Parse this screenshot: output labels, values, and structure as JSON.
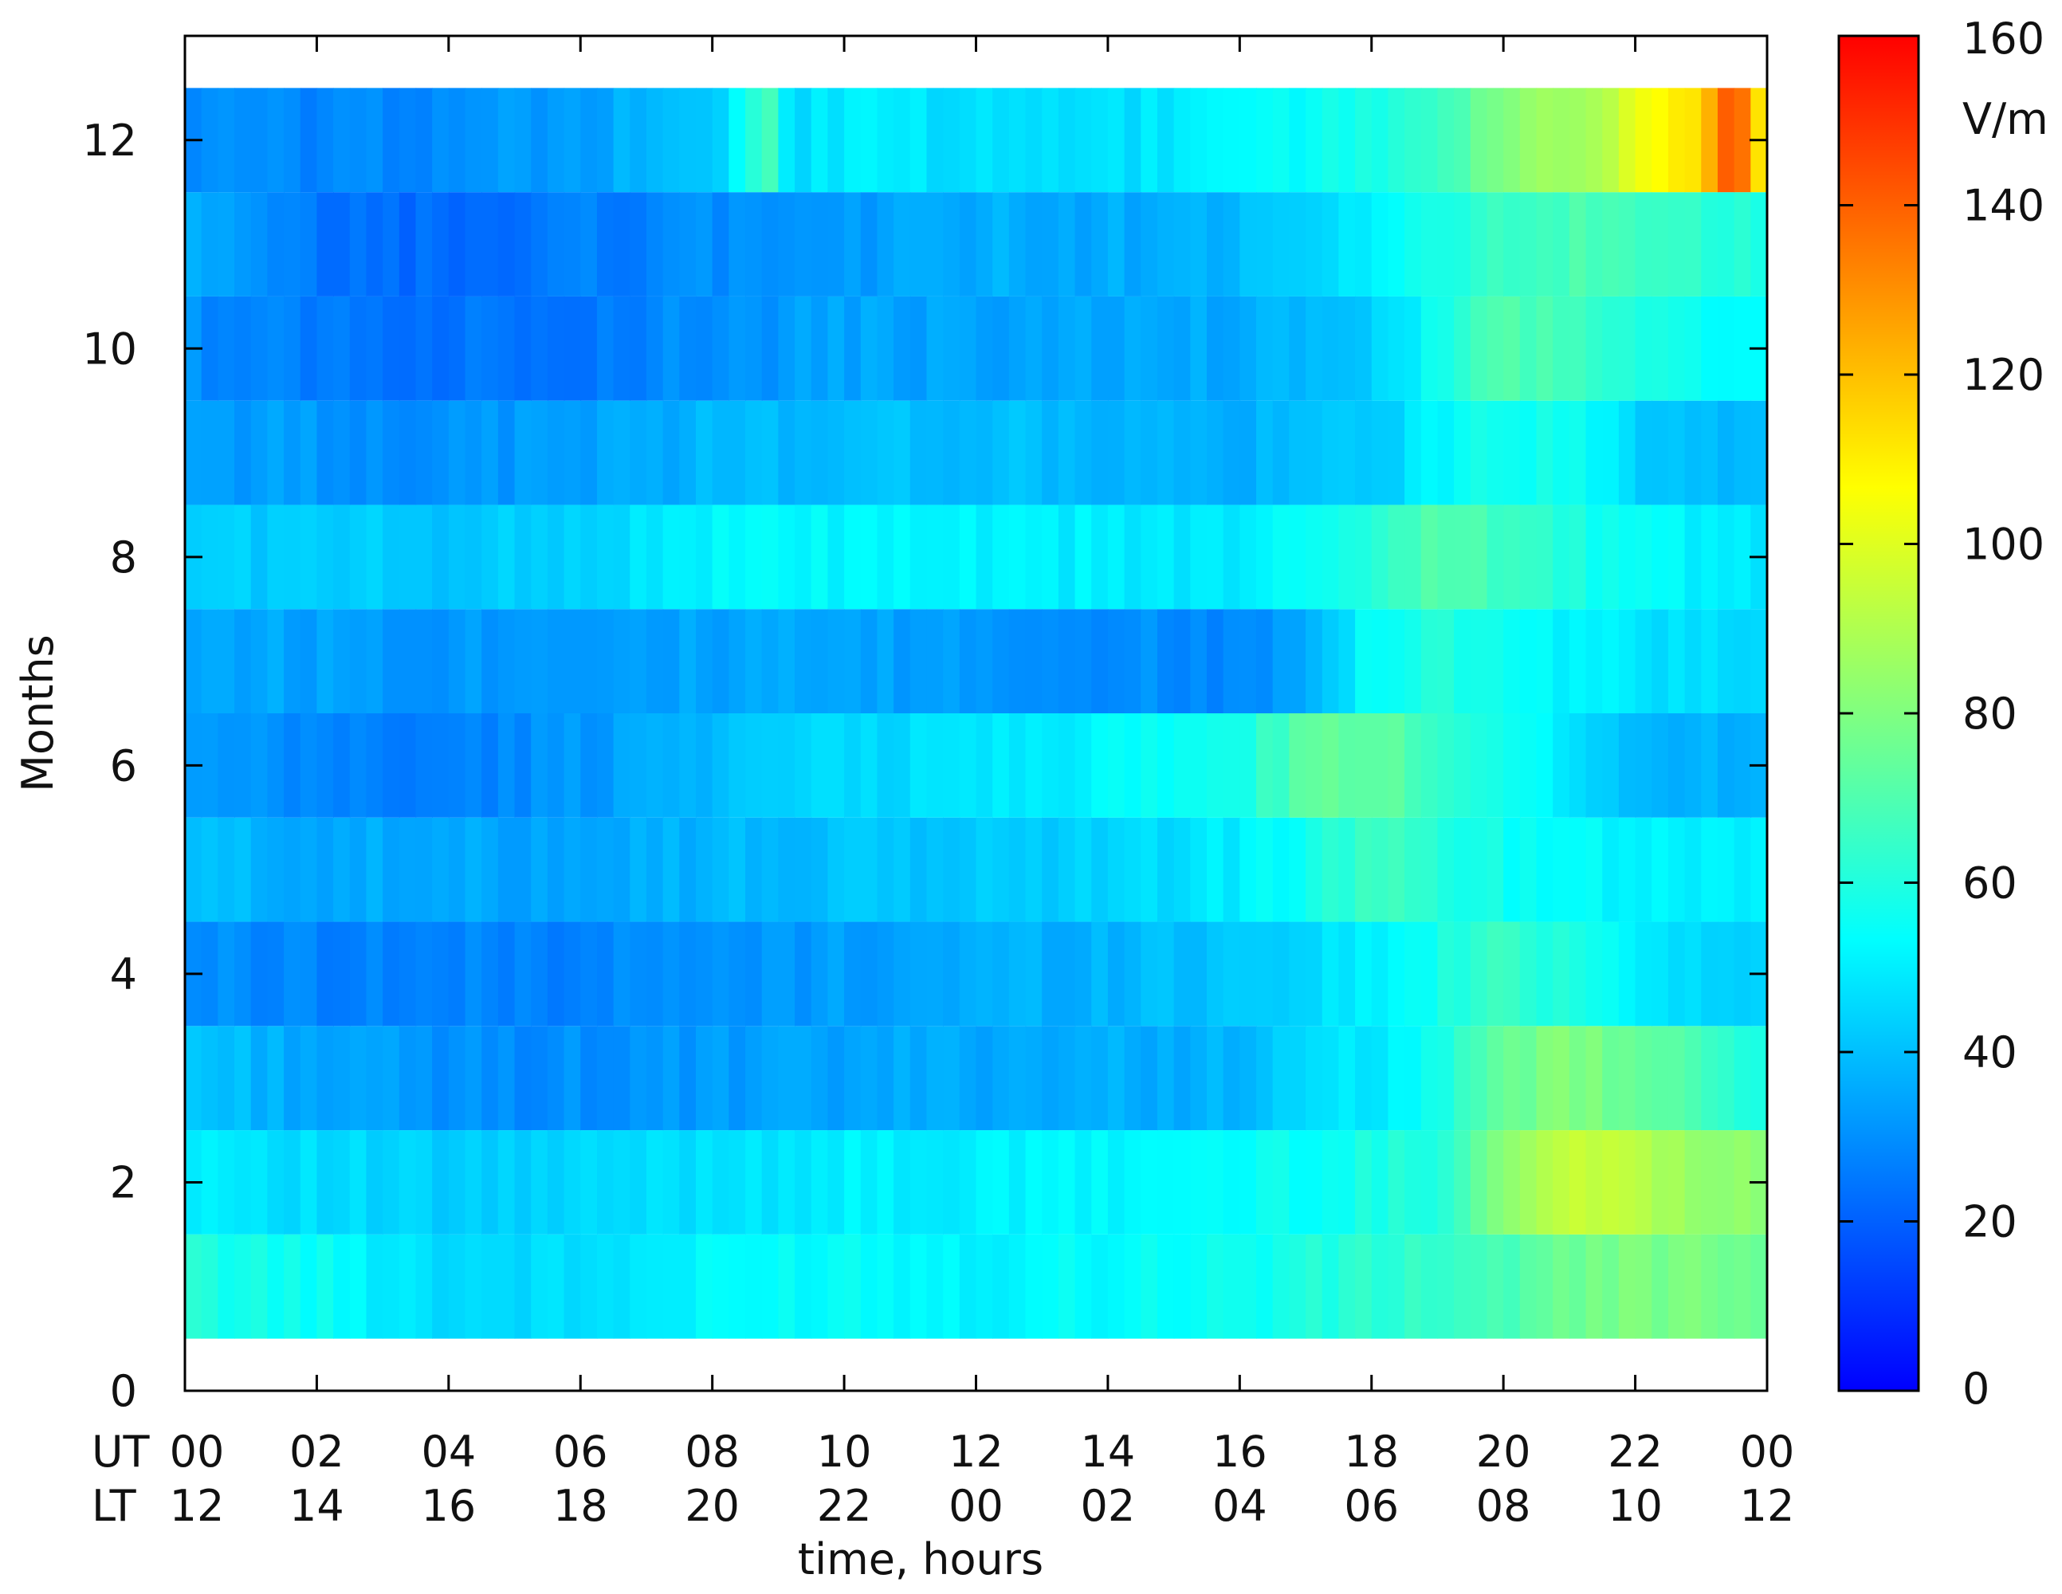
{
  "chart_data": {
    "type": "heatmap",
    "title": "",
    "xlabel": "time, hours",
    "ylabel": "Months",
    "x_axis_rows": [
      {
        "label": "UT",
        "ticks": [
          "00",
          "02",
          "04",
          "06",
          "08",
          "10",
          "12",
          "14",
          "16",
          "18",
          "20",
          "22",
          "00"
        ]
      },
      {
        "label": "LT",
        "ticks": [
          "12",
          "14",
          "16",
          "18",
          "20",
          "22",
          "00",
          "02",
          "04",
          "06",
          "08",
          "10",
          "12"
        ]
      }
    ],
    "xlim": [
      0,
      24
    ],
    "x_ticks": [
      0,
      2,
      4,
      6,
      8,
      10,
      12,
      14,
      16,
      18,
      20,
      22,
      24
    ],
    "ylim": [
      0,
      13
    ],
    "y_ticks": [
      0,
      2,
      4,
      6,
      8,
      10,
      12
    ],
    "y_tick_labels": [
      "0",
      "2",
      "4",
      "6",
      "8",
      "10",
      "12"
    ],
    "rows": [
      "1",
      "2",
      "3",
      "4",
      "5",
      "6",
      "7",
      "8",
      "9",
      "10",
      "11",
      "12"
    ],
    "data_x_range": [
      0,
      24
    ],
    "colorbar": {
      "unit": "V/m",
      "range": [
        0,
        160
      ],
      "ticks": [
        0,
        20,
        40,
        60,
        80,
        100,
        120,
        140,
        160
      ],
      "tick_labels": [
        "0",
        "20",
        "40",
        "60",
        "80",
        "100",
        "120",
        "140",
        "160"
      ],
      "colormap": [
        "#0000ff",
        "#0080ff",
        "#00ffff",
        "#80ff80",
        "#ffff00",
        "#ff8000",
        "#ff0000"
      ]
    },
    "row_profiles": [
      {
        "month": 1,
        "knots": [
          [
            0,
            60
          ],
          [
            2,
            55
          ],
          [
            4,
            46
          ],
          [
            6,
            46
          ],
          [
            8,
            52
          ],
          [
            10,
            55
          ],
          [
            12,
            52
          ],
          [
            14,
            54
          ],
          [
            16,
            56
          ],
          [
            18,
            62
          ],
          [
            20,
            68
          ],
          [
            21,
            75
          ],
          [
            22,
            80
          ],
          [
            23,
            78
          ],
          [
            24,
            72
          ]
        ]
      },
      {
        "month": 2,
        "knots": [
          [
            0,
            52
          ],
          [
            2,
            46
          ],
          [
            4,
            42
          ],
          [
            6,
            44
          ],
          [
            8,
            48
          ],
          [
            10,
            50
          ],
          [
            12,
            50
          ],
          [
            14,
            52
          ],
          [
            16,
            54
          ],
          [
            18,
            58
          ],
          [
            19,
            62
          ],
          [
            20,
            82
          ],
          [
            21,
            95
          ],
          [
            22,
            92
          ],
          [
            23,
            86
          ],
          [
            24,
            80
          ]
        ]
      },
      {
        "month": 3,
        "knots": [
          [
            0,
            42
          ],
          [
            2,
            35
          ],
          [
            4,
            30
          ],
          [
            6,
            30
          ],
          [
            8,
            32
          ],
          [
            10,
            34
          ],
          [
            12,
            36
          ],
          [
            14,
            36
          ],
          [
            16,
            38
          ],
          [
            18,
            50
          ],
          [
            19,
            55
          ],
          [
            20,
            75
          ],
          [
            21,
            80
          ],
          [
            22,
            75
          ],
          [
            23,
            66
          ],
          [
            24,
            60
          ]
        ]
      },
      {
        "month": 4,
        "knots": [
          [
            0,
            30
          ],
          [
            2,
            28
          ],
          [
            4,
            27
          ],
          [
            6,
            28
          ],
          [
            8,
            30
          ],
          [
            10,
            33
          ],
          [
            12,
            36
          ],
          [
            14,
            38
          ],
          [
            16,
            42
          ],
          [
            18,
            50
          ],
          [
            19,
            58
          ],
          [
            20,
            65
          ],
          [
            21,
            60
          ],
          [
            22,
            52
          ],
          [
            23,
            45
          ],
          [
            24,
            42
          ]
        ]
      },
      {
        "month": 5,
        "knots": [
          [
            0,
            40
          ],
          [
            2,
            36
          ],
          [
            4,
            34
          ],
          [
            6,
            36
          ],
          [
            8,
            38
          ],
          [
            10,
            40
          ],
          [
            12,
            42
          ],
          [
            14,
            44
          ],
          [
            16,
            50
          ],
          [
            18,
            65
          ],
          [
            19,
            62
          ],
          [
            20,
            56
          ],
          [
            22,
            52
          ],
          [
            24,
            50
          ]
        ]
      },
      {
        "month": 6,
        "knots": [
          [
            0,
            32
          ],
          [
            2,
            28
          ],
          [
            4,
            26
          ],
          [
            6,
            32
          ],
          [
            8,
            40
          ],
          [
            10,
            45
          ],
          [
            12,
            48
          ],
          [
            14,
            52
          ],
          [
            16,
            58
          ],
          [
            17,
            72
          ],
          [
            18,
            74
          ],
          [
            19,
            66
          ],
          [
            20,
            58
          ],
          [
            21,
            50
          ],
          [
            22,
            38
          ],
          [
            24,
            36
          ]
        ]
      },
      {
        "month": 7,
        "knots": [
          [
            0,
            36
          ],
          [
            2,
            34
          ],
          [
            4,
            32
          ],
          [
            6,
            34
          ],
          [
            8,
            34
          ],
          [
            10,
            34
          ],
          [
            12,
            32
          ],
          [
            14,
            30
          ],
          [
            16,
            28
          ],
          [
            17,
            38
          ],
          [
            18,
            55
          ],
          [
            19,
            62
          ],
          [
            20,
            55
          ],
          [
            22,
            48
          ],
          [
            24,
            44
          ]
        ]
      },
      {
        "month": 8,
        "knots": [
          [
            0,
            44
          ],
          [
            2,
            42
          ],
          [
            4,
            42
          ],
          [
            6,
            44
          ],
          [
            8,
            52
          ],
          [
            10,
            52
          ],
          [
            12,
            50
          ],
          [
            14,
            50
          ],
          [
            16,
            48
          ],
          [
            18,
            62
          ],
          [
            19,
            72
          ],
          [
            20,
            66
          ],
          [
            22,
            54
          ],
          [
            24,
            48
          ]
        ]
      },
      {
        "month": 9,
        "knots": [
          [
            0,
            34
          ],
          [
            2,
            32
          ],
          [
            4,
            30
          ],
          [
            6,
            34
          ],
          [
            8,
            38
          ],
          [
            10,
            40
          ],
          [
            12,
            40
          ],
          [
            14,
            38
          ],
          [
            16,
            36
          ],
          [
            18,
            42
          ],
          [
            19,
            52
          ],
          [
            20,
            58
          ],
          [
            21,
            56
          ],
          [
            22,
            44
          ],
          [
            24,
            38
          ]
        ]
      },
      {
        "month": 10,
        "knots": [
          [
            0,
            30
          ],
          [
            2,
            26
          ],
          [
            4,
            24
          ],
          [
            6,
            26
          ],
          [
            8,
            30
          ],
          [
            10,
            34
          ],
          [
            12,
            34
          ],
          [
            14,
            34
          ],
          [
            16,
            36
          ],
          [
            18,
            42
          ],
          [
            19,
            56
          ],
          [
            20,
            70
          ],
          [
            21,
            68
          ],
          [
            22,
            58
          ],
          [
            24,
            52
          ]
        ]
      },
      {
        "month": 11,
        "knots": [
          [
            0,
            36
          ],
          [
            2,
            24
          ],
          [
            4,
            22
          ],
          [
            6,
            26
          ],
          [
            8,
            30
          ],
          [
            10,
            32
          ],
          [
            12,
            36
          ],
          [
            14,
            36
          ],
          [
            16,
            38
          ],
          [
            18,
            50
          ],
          [
            19,
            58
          ],
          [
            20,
            66
          ],
          [
            21,
            68
          ],
          [
            22,
            66
          ],
          [
            23,
            62
          ],
          [
            24,
            58
          ]
        ]
      },
      {
        "month": 12,
        "knots": [
          [
            0,
            30
          ],
          [
            2,
            28
          ],
          [
            4,
            30
          ],
          [
            6,
            34
          ],
          [
            8,
            40
          ],
          [
            8.8,
            70
          ],
          [
            9.2,
            46
          ],
          [
            10,
            50
          ],
          [
            12,
            46
          ],
          [
            14,
            46
          ],
          [
            16,
            52
          ],
          [
            18,
            58
          ],
          [
            19,
            66
          ],
          [
            20,
            80
          ],
          [
            21,
            86
          ],
          [
            22,
            100
          ],
          [
            23,
            115
          ],
          [
            23.5,
            145
          ],
          [
            24,
            105
          ]
        ]
      }
    ]
  }
}
